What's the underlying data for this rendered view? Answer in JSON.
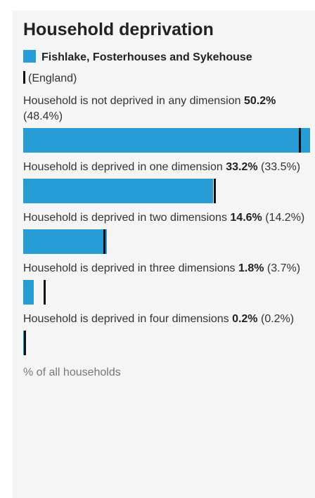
{
  "chart_data": {
    "type": "bar",
    "orientation": "horizontal",
    "title": "Household deprivation",
    "categories": [
      "Household is not deprived in any dimension",
      "Household is deprived in one dimension",
      "Household is deprived in two dimensions",
      "Household is deprived in three dimensions",
      "Household is deprived in four dimensions"
    ],
    "series": [
      {
        "name": "Fishlake, Fosterhouses and Sykehouse",
        "color": "#289dd5",
        "values": [
          50.2,
          33.2,
          14.6,
          1.8,
          0.2
        ],
        "value_labels": [
          "50.2%",
          "33.2%",
          "14.6%",
          "1.8%",
          "0.2%"
        ]
      },
      {
        "name": "(England)",
        "color": "#111111",
        "values": [
          48.4,
          33.5,
          14.2,
          3.7,
          0.2
        ],
        "value_labels": [
          "(48.4%)",
          "(33.5%)",
          "(14.2%)",
          "(3.7%)",
          "(0.2%)"
        ]
      }
    ],
    "xlim": [
      0,
      50.2
    ],
    "x_label": "% of all households"
  }
}
